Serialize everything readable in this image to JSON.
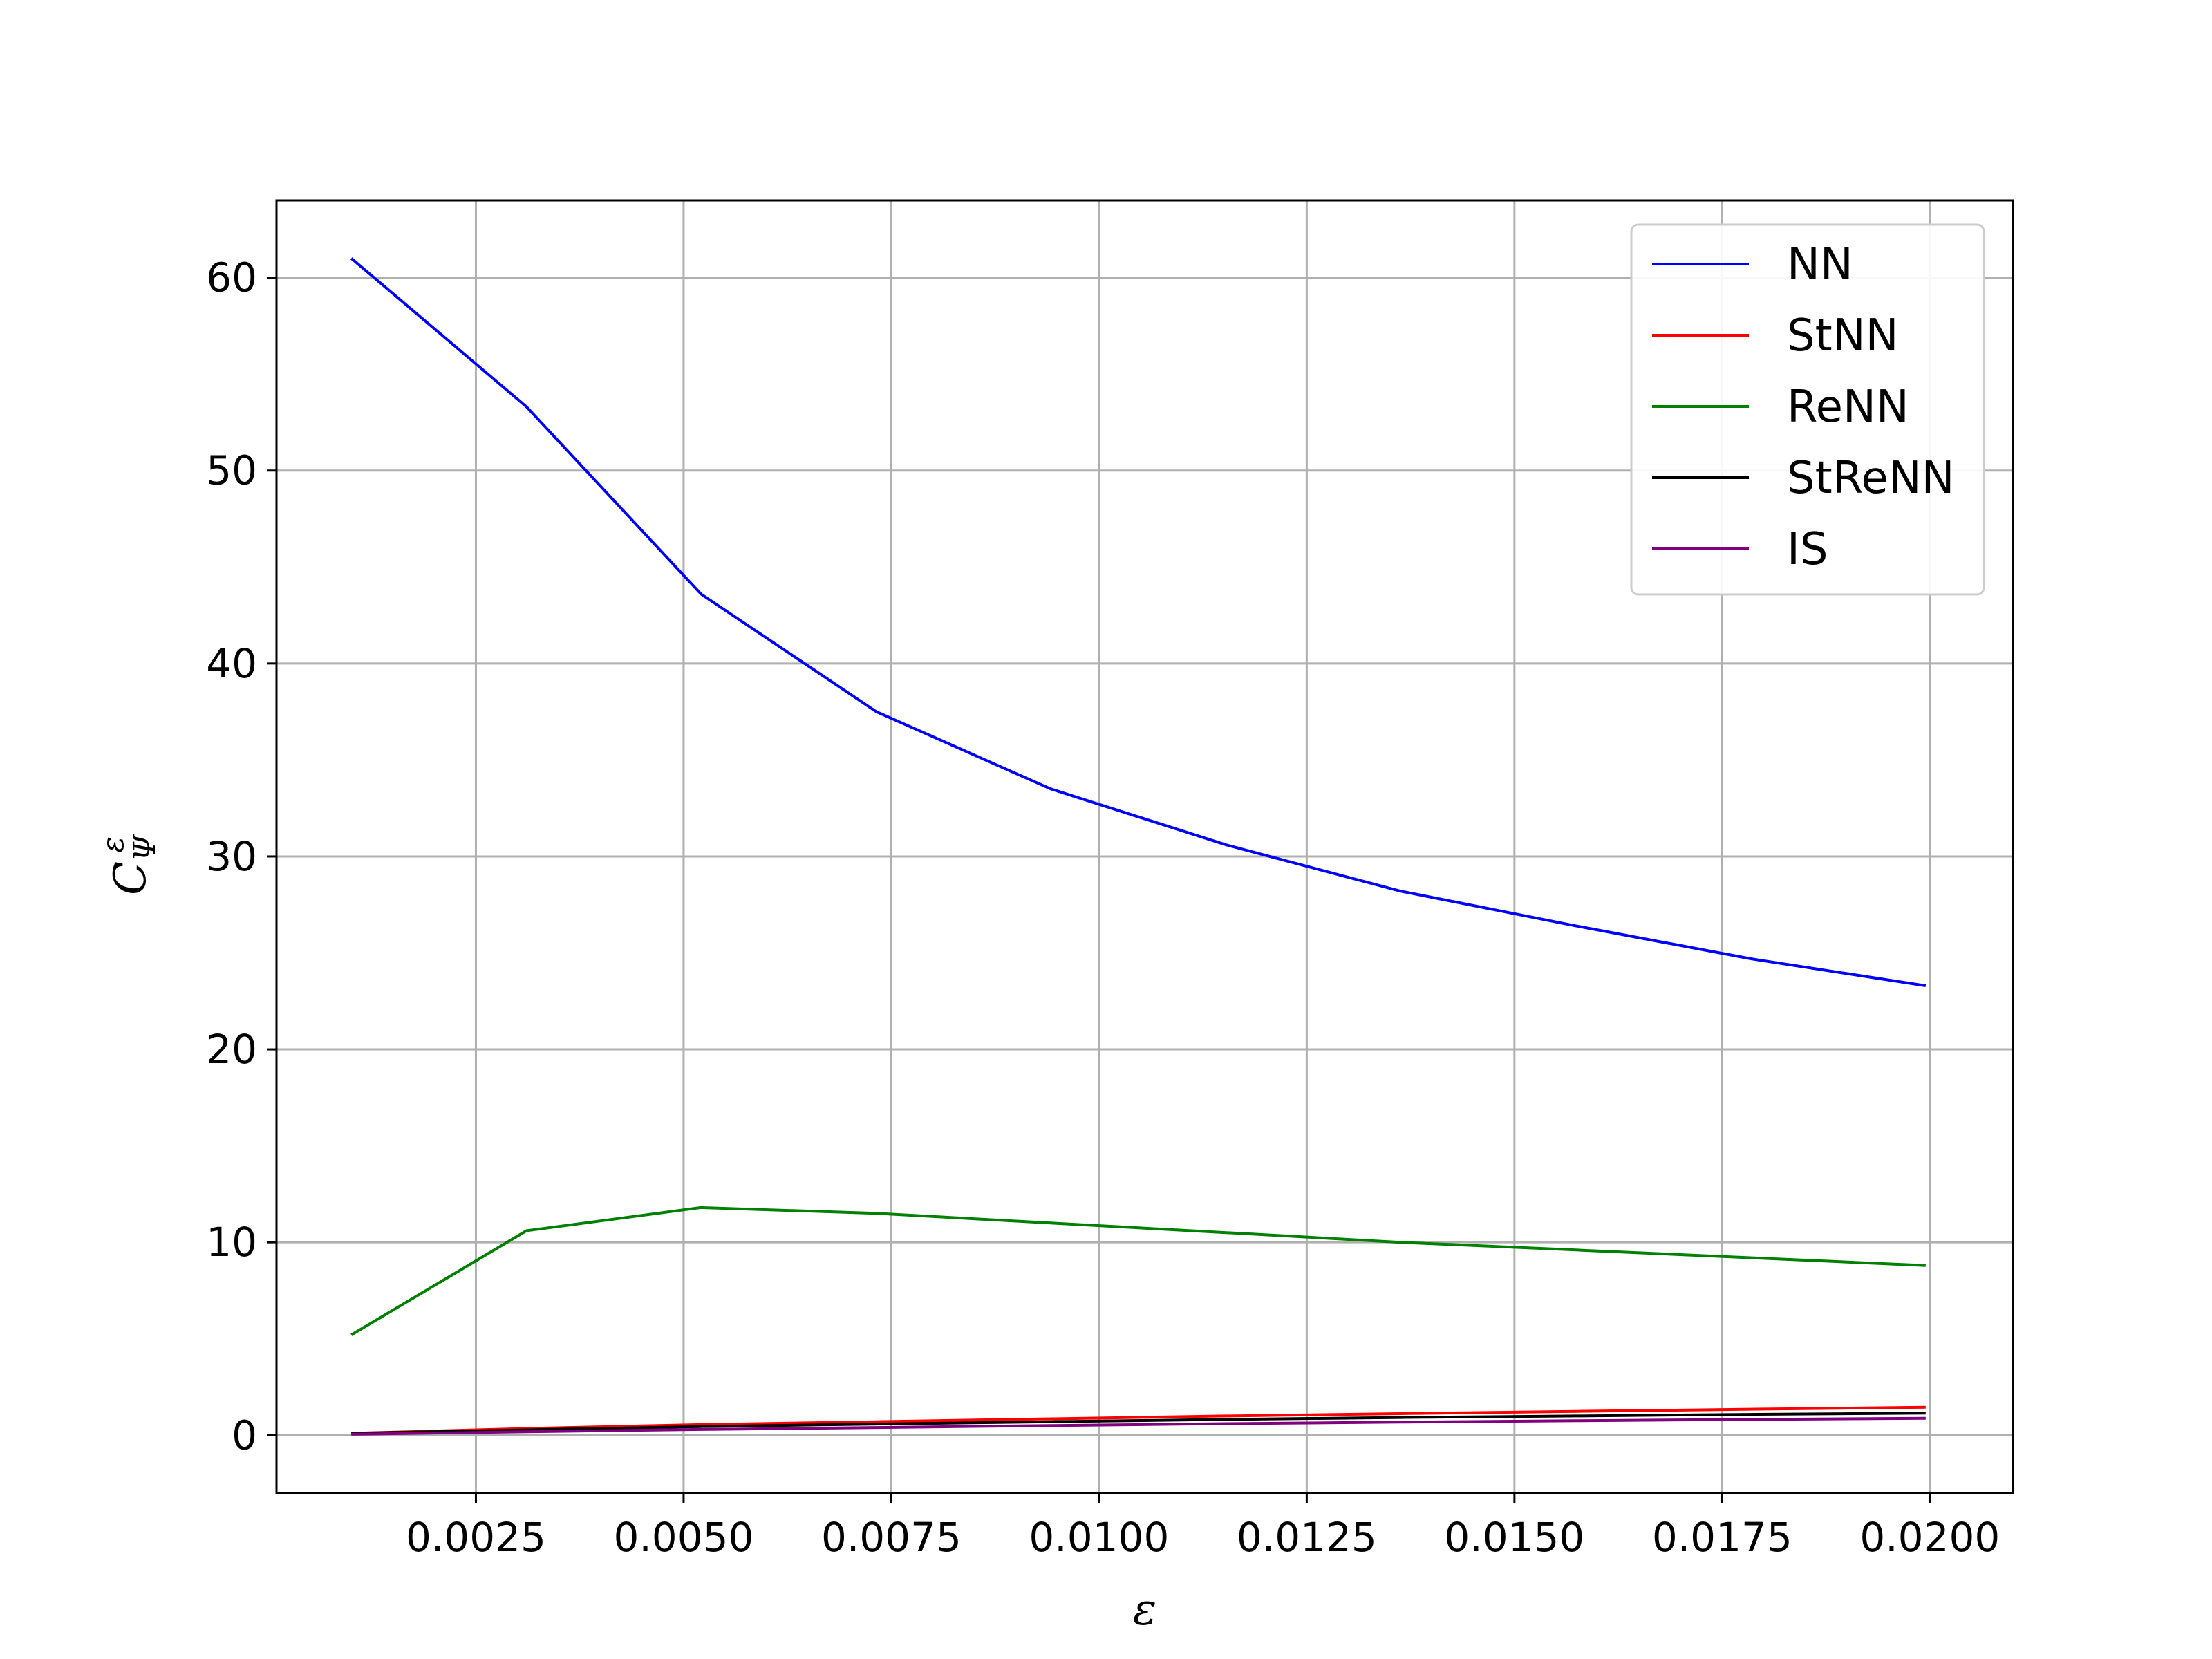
{
  "chart_data": {
    "type": "line",
    "title": "",
    "xlabel": "ε",
    "ylabel_main": "C",
    "ylabel_sub": "Ψ",
    "ylabel_sup": "ε",
    "xlim": [
      0.0001,
      0.021
    ],
    "ylim": [
      -3,
      64
    ],
    "xticks": [
      0.0025,
      0.005,
      0.0075,
      0.01,
      0.0125,
      0.015,
      0.0175,
      0.02
    ],
    "xtick_labels": [
      "0.0025",
      "0.0050",
      "0.0075",
      "0.0100",
      "0.0125",
      "0.0150",
      "0.0175",
      "0.0200"
    ],
    "yticks": [
      0,
      10,
      20,
      30,
      40,
      50,
      60
    ],
    "ytick_labels": [
      "0",
      "10",
      "20",
      "30",
      "40",
      "50",
      "60"
    ],
    "grid": true,
    "legend_position": "top-right",
    "x": [
      0.001,
      0.00311,
      0.00521,
      0.00732,
      0.00942,
      0.01153,
      0.01363,
      0.01574,
      0.01784,
      0.01995
    ],
    "series": [
      {
        "name": "NN",
        "color": "#0000ff",
        "values": [
          61.0,
          53.3,
          43.6,
          37.5,
          33.5,
          30.6,
          28.2,
          26.4,
          24.7,
          23.3
        ]
      },
      {
        "name": "StNN",
        "color": "#ff0000",
        "values": [
          0.1,
          0.35,
          0.55,
          0.7,
          0.85,
          1.0,
          1.12,
          1.24,
          1.35,
          1.45
        ]
      },
      {
        "name": "ReNN",
        "color": "#008000",
        "values": [
          5.2,
          10.6,
          11.8,
          11.5,
          11.0,
          10.5,
          10.0,
          9.6,
          9.2,
          8.8
        ]
      },
      {
        "name": "StReNN",
        "color": "#000000",
        "values": [
          0.1,
          0.28,
          0.45,
          0.58,
          0.7,
          0.82,
          0.92,
          1.0,
          1.08,
          1.15
        ]
      },
      {
        "name": "IS",
        "color": "#800080",
        "values": [
          0.05,
          0.18,
          0.3,
          0.4,
          0.5,
          0.6,
          0.68,
          0.75,
          0.82,
          0.88
        ]
      }
    ]
  }
}
